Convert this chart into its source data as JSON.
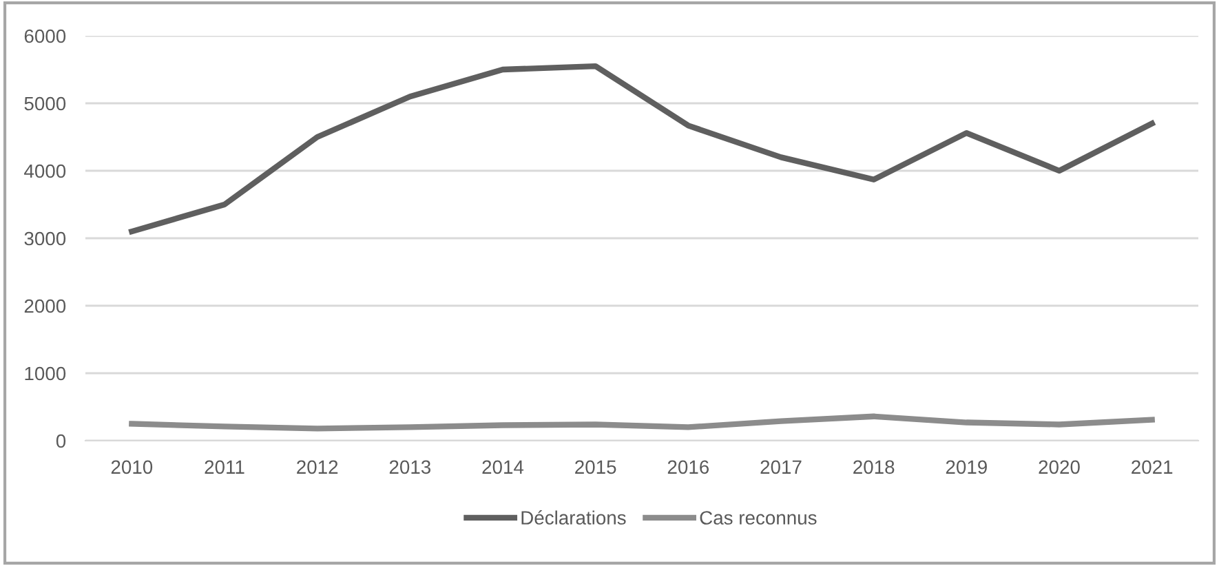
{
  "chart_data": {
    "type": "line",
    "categories": [
      "2010",
      "2011",
      "2012",
      "2013",
      "2014",
      "2015",
      "2016",
      "2017",
      "2018",
      "2019",
      "2020",
      "2021"
    ],
    "series": [
      {
        "name": "Déclarations",
        "color": "#5f5f5f",
        "values": [
          3100,
          3500,
          4500,
          5100,
          5500,
          5550,
          4670,
          4200,
          3870,
          4560,
          4000,
          4700
        ]
      },
      {
        "name": "Cas reconnus",
        "color": "#8c8c8c",
        "values": [
          250,
          210,
          180,
          200,
          230,
          240,
          200,
          290,
          360,
          270,
          240,
          310
        ]
      }
    ],
    "ylim": [
      0,
      6000
    ],
    "yticks": [
      0,
      1000,
      2000,
      3000,
      4000,
      5000,
      6000
    ],
    "grid": "y",
    "legend": "bottom",
    "marker": "none",
    "line_style": "solid"
  }
}
